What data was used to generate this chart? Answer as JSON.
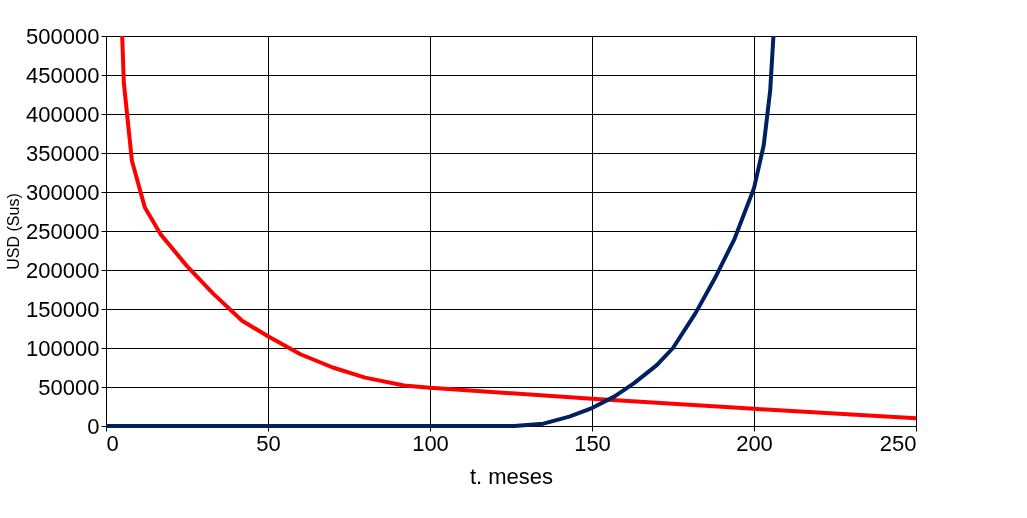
{
  "chart_data": {
    "type": "line",
    "xlabel": "t. meses",
    "ylabel": "USD (Sus)",
    "xlim": [
      0,
      250
    ],
    "xticks": [
      0,
      50,
      100,
      150,
      200,
      250
    ],
    "ylim": [
      0,
      500000
    ],
    "yticks": [
      0,
      50000,
      100000,
      150000,
      200000,
      250000,
      300000,
      350000,
      400000,
      450000,
      500000
    ],
    "grid": true,
    "marker": "none",
    "line_style": "solid",
    "series": [
      {
        "color": "#ff0000",
        "x": [
          5,
          5.5,
          8,
          12,
          17,
          25,
          33,
          42,
          50,
          60,
          70,
          80,
          92,
          100,
          150,
          200,
          250
        ],
        "values": [
          500000,
          440000,
          340000,
          280000,
          245000,
          205000,
          170000,
          135000,
          115000,
          92000,
          75000,
          62000,
          52000,
          49000,
          35000,
          22000,
          10000
        ]
      },
      {
        "color": "#002060",
        "x": [
          0,
          126,
          135,
          143,
          150,
          157,
          163,
          170,
          175,
          182,
          188,
          194,
          200,
          203,
          205,
          206
        ],
        "values": [
          0,
          0,
          3000,
          12000,
          23000,
          38000,
          55000,
          78000,
          100000,
          145000,
          190000,
          240000,
          305000,
          360000,
          430000,
          500000
        ]
      }
    ]
  }
}
